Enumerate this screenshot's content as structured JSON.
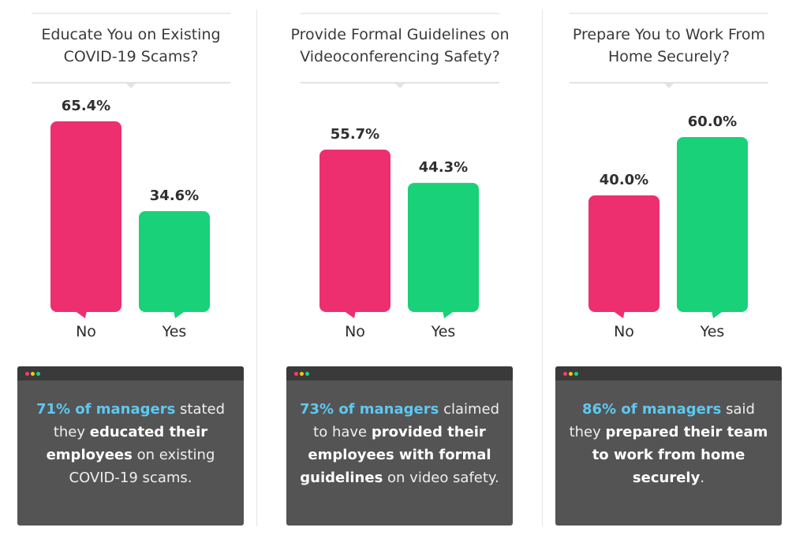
{
  "colors": {
    "no": "#ee2f6f",
    "yes": "#19d178",
    "highlight": "#5ec8f0",
    "card_bg": "#545454"
  },
  "panels": [
    {
      "question": "Educate You on Existing\nCOVID-19 Scams?",
      "chart_data": {
        "type": "bar",
        "categories": [
          "No",
          "Yes"
        ],
        "values": [
          65.4,
          34.6
        ],
        "value_labels": [
          "65.4%",
          "34.6%"
        ],
        "ylim": [
          0,
          100
        ]
      },
      "card": {
        "segments": [
          {
            "text": "71% of managers",
            "style": "hl"
          },
          {
            "text": " stated they ",
            "style": "plain"
          },
          {
            "text": "educated their employees",
            "style": "b"
          },
          {
            "text": " on existing COVID-19 scams.",
            "style": "plain"
          }
        ]
      }
    },
    {
      "question": "Provide Formal Guidelines on\nVideoconferencing Safety?",
      "chart_data": {
        "type": "bar",
        "categories": [
          "No",
          "Yes"
        ],
        "values": [
          55.7,
          44.3
        ],
        "value_labels": [
          "55.7%",
          "44.3%"
        ],
        "ylim": [
          0,
          100
        ]
      },
      "card": {
        "segments": [
          {
            "text": "73% of managers",
            "style": "hl"
          },
          {
            "text": " claimed to have ",
            "style": "plain"
          },
          {
            "text": "provided their employees with formal guidelines",
            "style": "b"
          },
          {
            "text": " on video safety.",
            "style": "plain"
          }
        ]
      }
    },
    {
      "question": "Prepare You to Work From\nHome Securely?",
      "chart_data": {
        "type": "bar",
        "categories": [
          "No",
          "Yes"
        ],
        "values": [
          40.0,
          60.0
        ],
        "value_labels": [
          "40.0%",
          "60.0%"
        ],
        "ylim": [
          0,
          100
        ]
      },
      "card": {
        "segments": [
          {
            "text": "86% of managers",
            "style": "hl"
          },
          {
            "text": " said they ",
            "style": "plain"
          },
          {
            "text": "prepared their team to work from home securely",
            "style": "b"
          },
          {
            "text": ".",
            "style": "plain"
          }
        ]
      }
    }
  ]
}
